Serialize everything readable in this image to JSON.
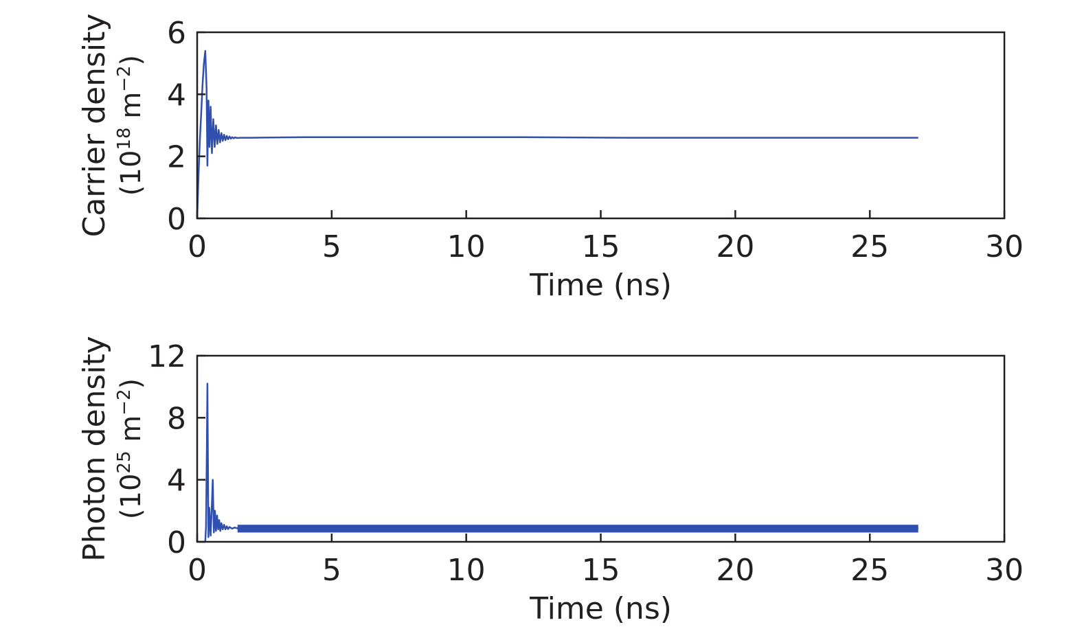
{
  "colors": {
    "line": "#3050b0",
    "axis": "#231f20",
    "background": "#ffffff"
  },
  "chart_data": [
    {
      "type": "line",
      "title": "",
      "xlabel": "Time (ns)",
      "ylabel_line1": "Carrier density",
      "ylabel_line2_base": "(10",
      "ylabel_line2_exp": "18",
      "ylabel_line2_unit": " m",
      "ylabel_line2_unit_exp": "−2",
      "ylabel_line2_close": ")",
      "xlim": [
        0,
        30
      ],
      "ylim": [
        0,
        6
      ],
      "xticks": [
        0,
        5,
        10,
        15,
        20,
        25,
        30
      ],
      "yticks": [
        0,
        2,
        4,
        6
      ],
      "grid": false,
      "series": [
        {
          "x": [
            0,
            0.05,
            0.1,
            0.15,
            0.2,
            0.25,
            0.3,
            0.35,
            0.38,
            0.42,
            0.46,
            0.5,
            0.55,
            0.6,
            0.65,
            0.7,
            0.75,
            0.8,
            0.85,
            0.9,
            0.95,
            1.0,
            1.05,
            1.1,
            1.15,
            1.2,
            1.25,
            1.3,
            1.35,
            1.4,
            1.5,
            1.6,
            1.8,
            2.0,
            4.0,
            8.0,
            12.0,
            16.0,
            20.0,
            24.0,
            26.8
          ],
          "values": [
            0,
            1.4,
            2.5,
            3.4,
            4.3,
            5.0,
            5.4,
            4.2,
            1.7,
            3.8,
            2.3,
            3.6,
            2.1,
            3.2,
            2.3,
            3.0,
            2.4,
            2.85,
            2.45,
            2.75,
            2.5,
            2.7,
            2.52,
            2.66,
            2.55,
            2.64,
            2.57,
            2.62,
            2.58,
            2.61,
            2.59,
            2.6,
            2.6,
            2.6,
            2.62,
            2.62,
            2.62,
            2.6,
            2.6,
            2.6,
            2.6
          ]
        }
      ]
    },
    {
      "type": "line",
      "title": "",
      "xlabel": "Time (ns)",
      "ylabel_line1": "Photon density",
      "ylabel_line2_base": "(10",
      "ylabel_line2_exp": "25",
      "ylabel_line2_unit": " m",
      "ylabel_line2_unit_exp": "−2",
      "ylabel_line2_close": ")",
      "xlim": [
        0,
        30
      ],
      "ylim": [
        0,
        12
      ],
      "xticks": [
        0,
        5,
        10,
        15,
        20,
        25,
        30
      ],
      "yticks": [
        0,
        4,
        8,
        12
      ],
      "grid": false,
      "series": [
        {
          "x": [
            0,
            0.3,
            0.33,
            0.36,
            0.38,
            0.4,
            0.42,
            0.45,
            0.5,
            0.55,
            0.58,
            0.62,
            0.66,
            0.7,
            0.74,
            0.78,
            0.82,
            0.86,
            0.9,
            0.95,
            1.0,
            1.05,
            1.1,
            1.15,
            1.2,
            1.3,
            1.4,
            1.5,
            1.7,
            2.0,
            4.0,
            8.0,
            12.0,
            16.0,
            20.0,
            24.0,
            26.8
          ],
          "values": [
            0,
            0,
            1.0,
            6.0,
            10.2,
            5.0,
            0.3,
            2.2,
            0.4,
            2.5,
            4.0,
            0.6,
            2.0,
            0.7,
            1.7,
            0.8,
            1.4,
            0.7,
            1.2,
            0.8,
            1.1,
            0.8,
            1.0,
            0.82,
            0.95,
            0.85,
            0.92,
            0.87,
            0.88,
            0.88,
            0.88,
            0.88,
            0.88,
            0.85,
            0.86,
            0.86,
            0.86
          ]
        }
      ],
      "band": {
        "from_x": 1.5,
        "to_x": 26.8,
        "low": 0.6,
        "high": 1.1
      }
    }
  ]
}
